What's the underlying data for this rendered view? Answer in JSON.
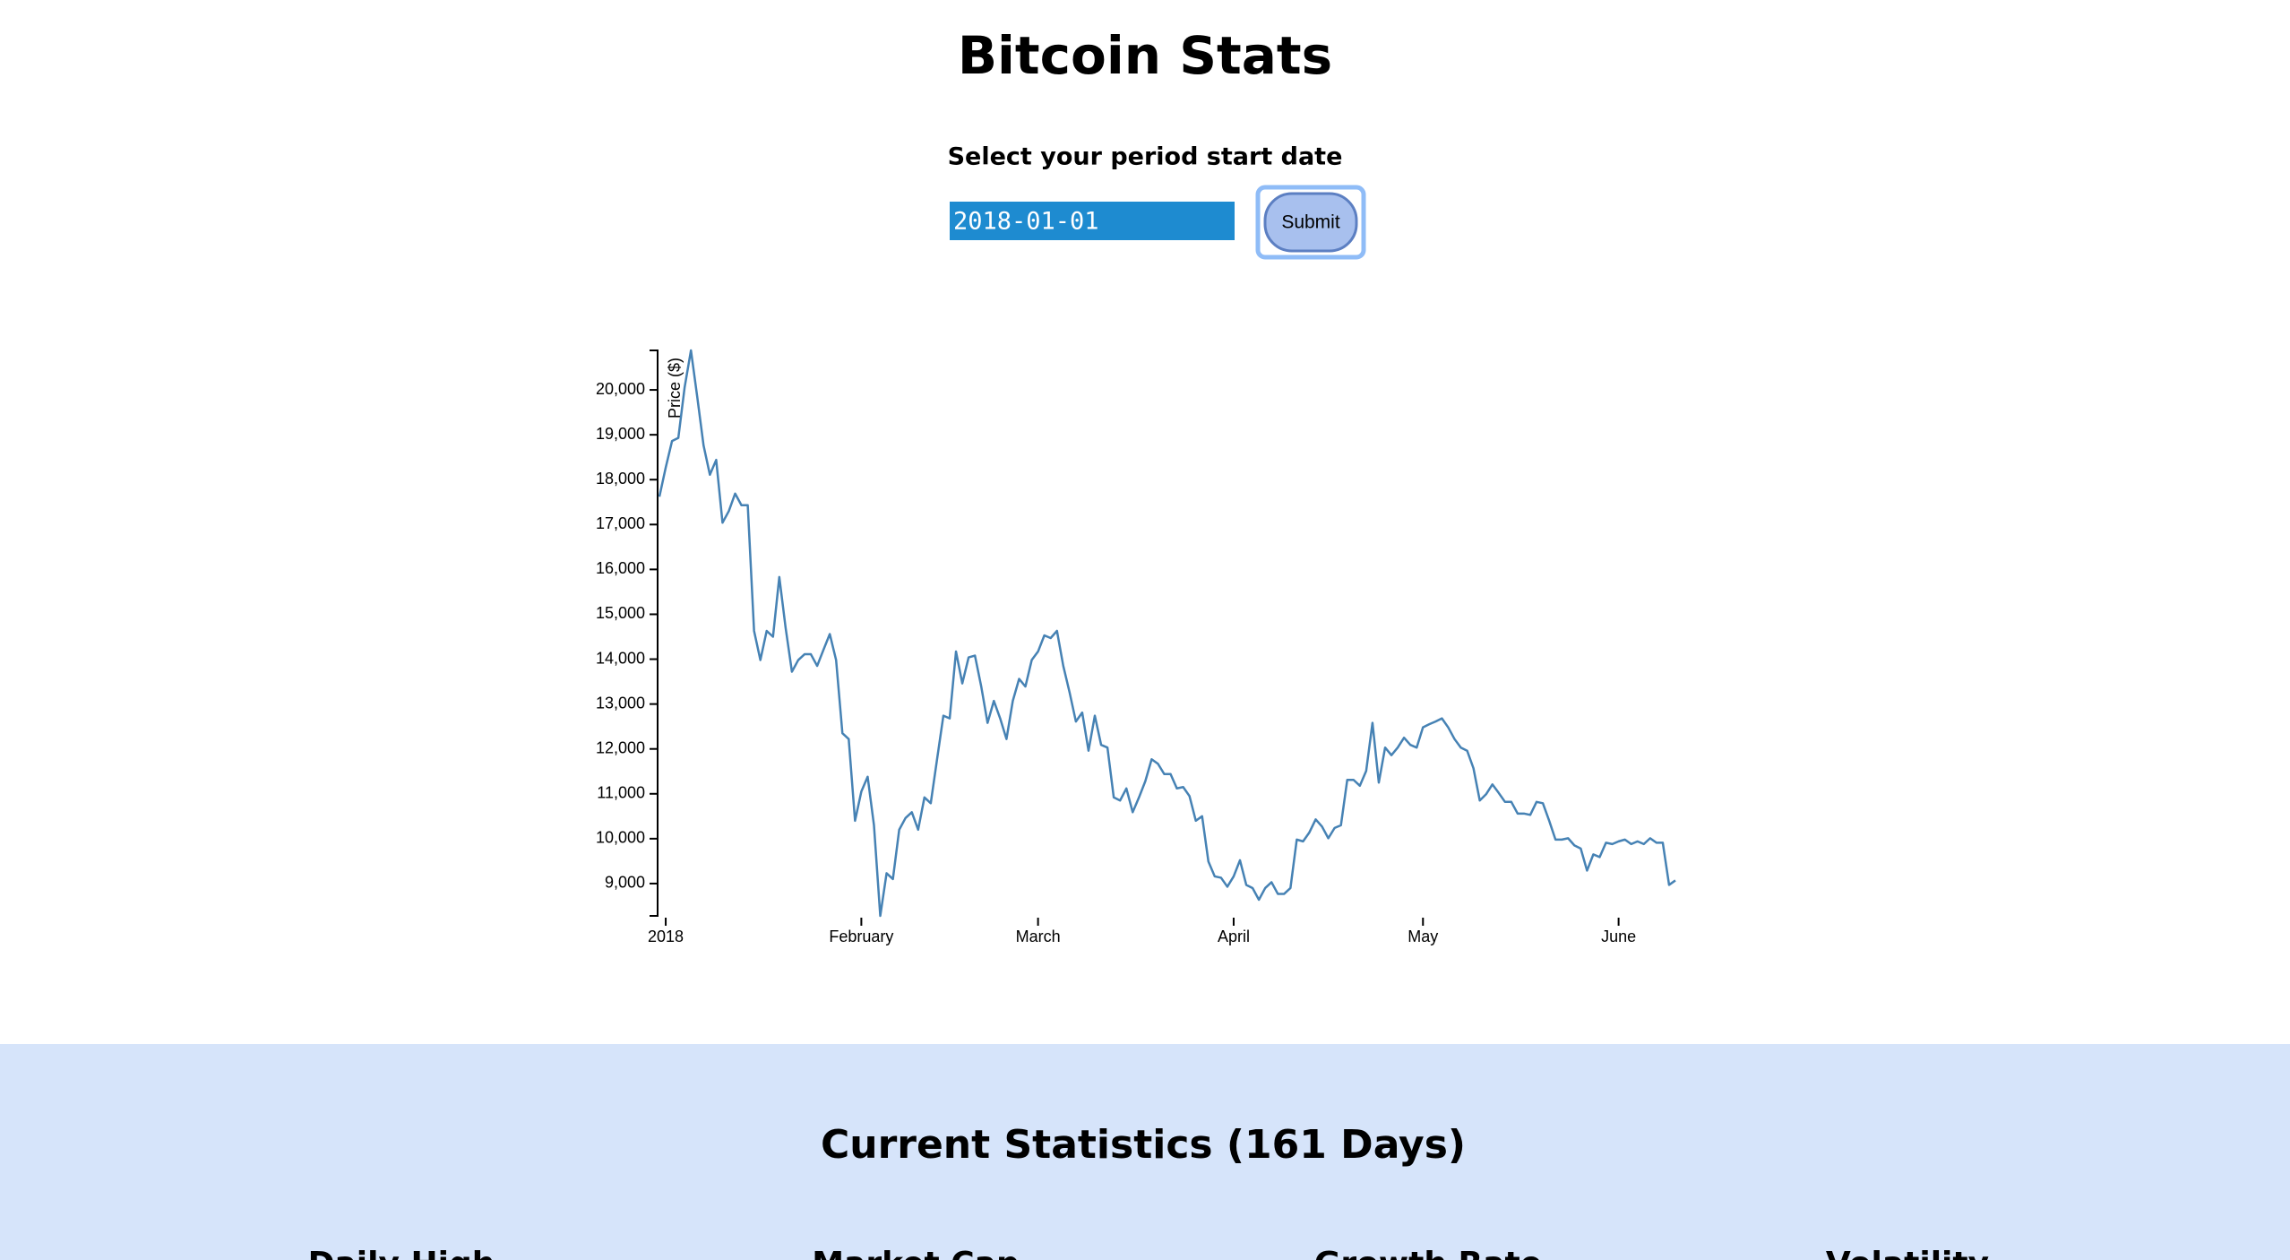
{
  "header": {
    "title": "Bitcoin Stats"
  },
  "form": {
    "label": "Select your period start date",
    "date_value": "2018-01-01",
    "button": "Submit"
  },
  "chart_data": {
    "type": "line",
    "y_label": "Price ($)",
    "color": "#4682b4",
    "values": [
      17620,
      18270,
      18860,
      18930,
      20060,
      20880,
      19840,
      18760,
      18110,
      18440,
      17040,
      17300,
      17690,
      17430,
      17430,
      14630,
      13980,
      14630,
      14500,
      15830,
      14700,
      13720,
      13980,
      14110,
      14110,
      13850,
      14210,
      14560,
      13980,
      12350,
      12220,
      10400,
      11050,
      11380,
      10300,
      8280,
      9230,
      9100,
      10200,
      10460,
      10590,
      10200,
      10920,
      10790,
      11770,
      12740,
      12680,
      14170,
      13460,
      14040,
      14080,
      13390,
      12580,
      13070,
      12680,
      12220,
      13070,
      13560,
      13390,
      13980,
      14170,
      14530,
      14470,
      14630,
      13850,
      13260,
      12610,
      12810,
      11960,
      12740,
      12090,
      12030,
      10920,
      10850,
      11120,
      10590,
      10920,
      11280,
      11770,
      11670,
      11440,
      11440,
      11120,
      11150,
      10950,
      10400,
      10500,
      9490,
      9160,
      9130,
      8930,
      9160,
      9520,
      8970,
      8900,
      8640,
      8900,
      9030,
      8770,
      8770,
      8900,
      9980,
      9940,
      10140,
      10430,
      10270,
      10010,
      10240,
      10300,
      11310,
      11310,
      11180,
      11510,
      12580,
      11250,
      12030,
      11860,
      12030,
      12250,
      12090,
      12030,
      12480,
      12550,
      12610,
      12680,
      12480,
      12220,
      12030,
      11960,
      11570,
      10850,
      10990,
      11210,
      11020,
      10820,
      10820,
      10560,
      10560,
      10530,
      10820,
      10790,
      10400,
      9980,
      9980,
      10010,
      9850,
      9780,
      9290,
      9650,
      9590,
      9910,
      9880,
      9940,
      9980,
      9880,
      9940,
      9880,
      10010,
      9910,
      9910,
      8970,
      9070
    ],
    "xlim": [
      0,
      161
    ],
    "xticks": [
      {
        "value": 1,
        "label": "2018"
      },
      {
        "value": 32,
        "label": "February"
      },
      {
        "value": 60,
        "label": "March"
      },
      {
        "value": 91,
        "label": "April"
      },
      {
        "value": 121,
        "label": "May"
      },
      {
        "value": 152,
        "label": "June"
      }
    ],
    "ylim": [
      8280,
      20880
    ],
    "yticks": [
      {
        "value": 9000,
        "label": "9,000"
      },
      {
        "value": 10000,
        "label": "10,000"
      },
      {
        "value": 11000,
        "label": "11,000"
      },
      {
        "value": 12000,
        "label": "12,000"
      },
      {
        "value": 13000,
        "label": "13,000"
      },
      {
        "value": 14000,
        "label": "14,000"
      },
      {
        "value": 15000,
        "label": "15,000"
      },
      {
        "value": 16000,
        "label": "16,000"
      },
      {
        "value": 17000,
        "label": "17,000"
      },
      {
        "value": 18000,
        "label": "18,000"
      },
      {
        "value": 19000,
        "label": "19,000"
      },
      {
        "value": 20000,
        "label": "20,000"
      }
    ]
  },
  "statistics": {
    "title": "Current Statistics (161 Days)",
    "items": [
      "Daily High",
      "Market Cap",
      "Growth Rate",
      "Volatility"
    ]
  }
}
